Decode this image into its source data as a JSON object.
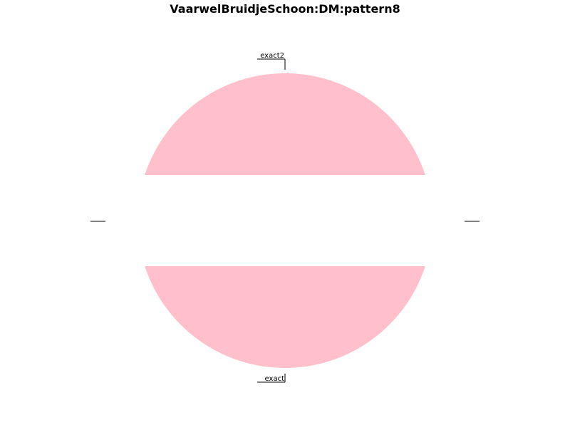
{
  "chart_data": {
    "type": "pie",
    "title": "VaarwelBruidjeSchoon:DM:pattern8",
    "slices": [
      {
        "label": "exact2",
        "value": 40,
        "color": "#ffc0cb"
      },
      {
        "label": "",
        "value": 10,
        "color": "#ffffff"
      },
      {
        "label": "exact",
        "value": 40,
        "color": "#ffc0cb"
      },
      {
        "label": "",
        "value": 10,
        "color": "#ffffff"
      }
    ]
  }
}
